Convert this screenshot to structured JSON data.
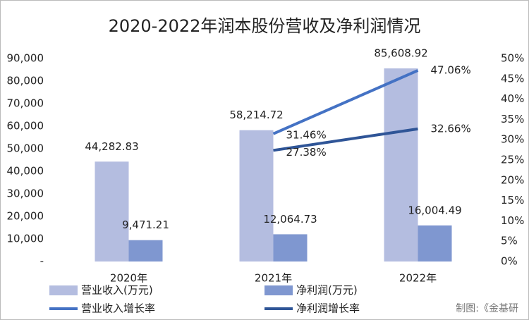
{
  "chart_data": {
    "type": "bar",
    "title": "2020-2022年润本股份营收及净利润情况",
    "categories": [
      "2020年",
      "2021年",
      "2022年"
    ],
    "series": [
      {
        "name": "营业收入(万元)",
        "type": "bar",
        "color": "#b4bde0",
        "values": [
          44282.83,
          58214.72,
          85608.92
        ],
        "value_labels": [
          "44,282.83",
          "58,214.72",
          "85,608.92"
        ]
      },
      {
        "name": "净利润(万元)",
        "type": "bar",
        "color": "#7f97d0",
        "values": [
          9471.21,
          12064.73,
          16004.49
        ],
        "value_labels": [
          "9,471.21",
          "12,064.73",
          "16,004.49"
        ]
      },
      {
        "name": "营业收入增长率",
        "type": "line",
        "axis": "y2",
        "color": "#4472c4",
        "values": [
          null,
          31.46,
          47.06
        ],
        "value_labels": [
          null,
          "31.46%",
          "47.06%"
        ]
      },
      {
        "name": "净利润增长率",
        "type": "line",
        "axis": "y2",
        "color": "#2f5597",
        "values": [
          null,
          27.38,
          32.66
        ],
        "value_labels": [
          null,
          "27.38%",
          "32.66%"
        ]
      }
    ],
    "ylim": [
      0,
      90000
    ],
    "yticks": [
      {
        "value": 0,
        "label": "-"
      },
      {
        "value": 10000,
        "label": "10,000"
      },
      {
        "value": 20000,
        "label": "20,000"
      },
      {
        "value": 30000,
        "label": "30,000"
      },
      {
        "value": 40000,
        "label": "40,000"
      },
      {
        "value": 50000,
        "label": "50,000"
      },
      {
        "value": 60000,
        "label": "60,000"
      },
      {
        "value": 70000,
        "label": "70,000"
      },
      {
        "value": 80000,
        "label": "80,000"
      },
      {
        "value": 90000,
        "label": "90,000"
      }
    ],
    "y2lim": [
      0,
      50
    ],
    "y2ticks": [
      {
        "value": 0,
        "label": "0%"
      },
      {
        "value": 5,
        "label": "5%"
      },
      {
        "value": 10,
        "label": "10%"
      },
      {
        "value": 15,
        "label": "15%"
      },
      {
        "value": 20,
        "label": "20%"
      },
      {
        "value": 25,
        "label": "25%"
      },
      {
        "value": 30,
        "label": "30%"
      },
      {
        "value": 35,
        "label": "35%"
      },
      {
        "value": 40,
        "label": "40%"
      },
      {
        "value": 45,
        "label": "45%"
      },
      {
        "value": 50,
        "label": "50%"
      }
    ],
    "source": "制图:《金基研"
  }
}
